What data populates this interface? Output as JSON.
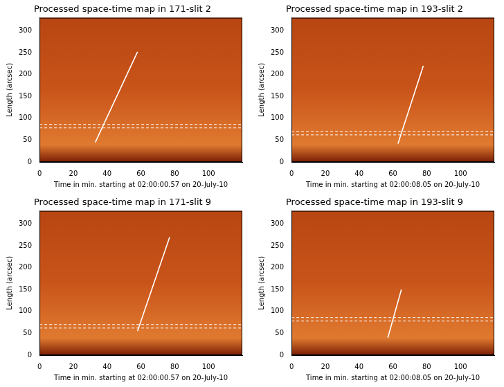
{
  "chart_data": [
    {
      "type": "scatter",
      "title": "Processed space-time map in 171-slit 2",
      "x_label": "Time in min. starting at 02:00:00.57 on 20-July-10",
      "y_label": "Length (arcsec)",
      "xlim": [
        0,
        120
      ],
      "xticks": [
        0,
        20,
        40,
        60,
        80,
        100
      ],
      "ylim": [
        0,
        330
      ],
      "yticks": [
        0,
        50,
        100,
        150,
        200,
        250,
        300
      ],
      "grid": false,
      "series": [
        {
          "color": "#ffffff",
          "line_style": "solid",
          "x": [
            33,
            58
          ],
          "values": [
            45,
            252
          ]
        },
        {
          "color": "#ffffff",
          "line_style": "dashed",
          "x": [
            0,
            120
          ],
          "values": [
            78,
            78
          ]
        },
        {
          "color": "#ffffff",
          "line_style": "dashed",
          "x": [
            0,
            120
          ],
          "values": [
            86,
            86
          ]
        }
      ]
    },
    {
      "type": "scatter",
      "title": "Processed space-time map in 193-slit 2",
      "x_label": "Time in min. starting at 02:00:08.05 on 20-July-10",
      "y_label": "Length (arcsec)",
      "xlim": [
        0,
        120
      ],
      "xticks": [
        0,
        20,
        40,
        60,
        80,
        100
      ],
      "ylim": [
        0,
        330
      ],
      "yticks": [
        0,
        50,
        100,
        150,
        200,
        250,
        300
      ],
      "grid": false,
      "series": [
        {
          "color": "#ffffff",
          "line_style": "solid",
          "x": [
            63,
            78
          ],
          "values": [
            42,
            220
          ]
        },
        {
          "color": "#ffffff",
          "line_style": "dashed",
          "x": [
            0,
            120
          ],
          "values": [
            62,
            62
          ]
        },
        {
          "color": "#ffffff",
          "line_style": "dashed",
          "x": [
            0,
            120
          ],
          "values": [
            70,
            70
          ]
        }
      ]
    },
    {
      "type": "scatter",
      "title": "Processed space-time map in 171-slit 9",
      "x_label": "Time in min. starting at 02:00:00.57 on 20-July-10",
      "y_label": "Length (arcsec)",
      "xlim": [
        0,
        120
      ],
      "xticks": [
        0,
        20,
        40,
        60,
        80,
        100
      ],
      "ylim": [
        0,
        330
      ],
      "yticks": [
        0,
        50,
        100,
        150,
        200,
        250,
        300
      ],
      "grid": false,
      "series": [
        {
          "color": "#ffffff",
          "line_style": "solid",
          "x": [
            58,
            77
          ],
          "values": [
            55,
            270
          ]
        },
        {
          "color": "#ffffff",
          "line_style": "dashed",
          "x": [
            0,
            120
          ],
          "values": [
            62,
            62
          ]
        },
        {
          "color": "#ffffff",
          "line_style": "dashed",
          "x": [
            0,
            120
          ],
          "values": [
            70,
            70
          ]
        }
      ]
    },
    {
      "type": "scatter",
      "title": "Processed space-time map in 193-slit 9",
      "x_label": "Time in min. starting at 02:00:08.05 on 20-July-10",
      "y_label": "Length (arcsec)",
      "xlim": [
        0,
        120
      ],
      "xticks": [
        0,
        20,
        40,
        60,
        80,
        100
      ],
      "ylim": [
        0,
        330
      ],
      "yticks": [
        0,
        50,
        100,
        150,
        200,
        250,
        300
      ],
      "grid": false,
      "series": [
        {
          "color": "#ffffff",
          "line_style": "solid",
          "x": [
            57,
            65
          ],
          "values": [
            40,
            150
          ]
        },
        {
          "color": "#ffffff",
          "line_style": "dashed",
          "x": [
            0,
            120
          ],
          "values": [
            78,
            78
          ]
        },
        {
          "color": "#ffffff",
          "line_style": "dashed",
          "x": [
            0,
            120
          ],
          "values": [
            86,
            86
          ]
        }
      ]
    }
  ]
}
